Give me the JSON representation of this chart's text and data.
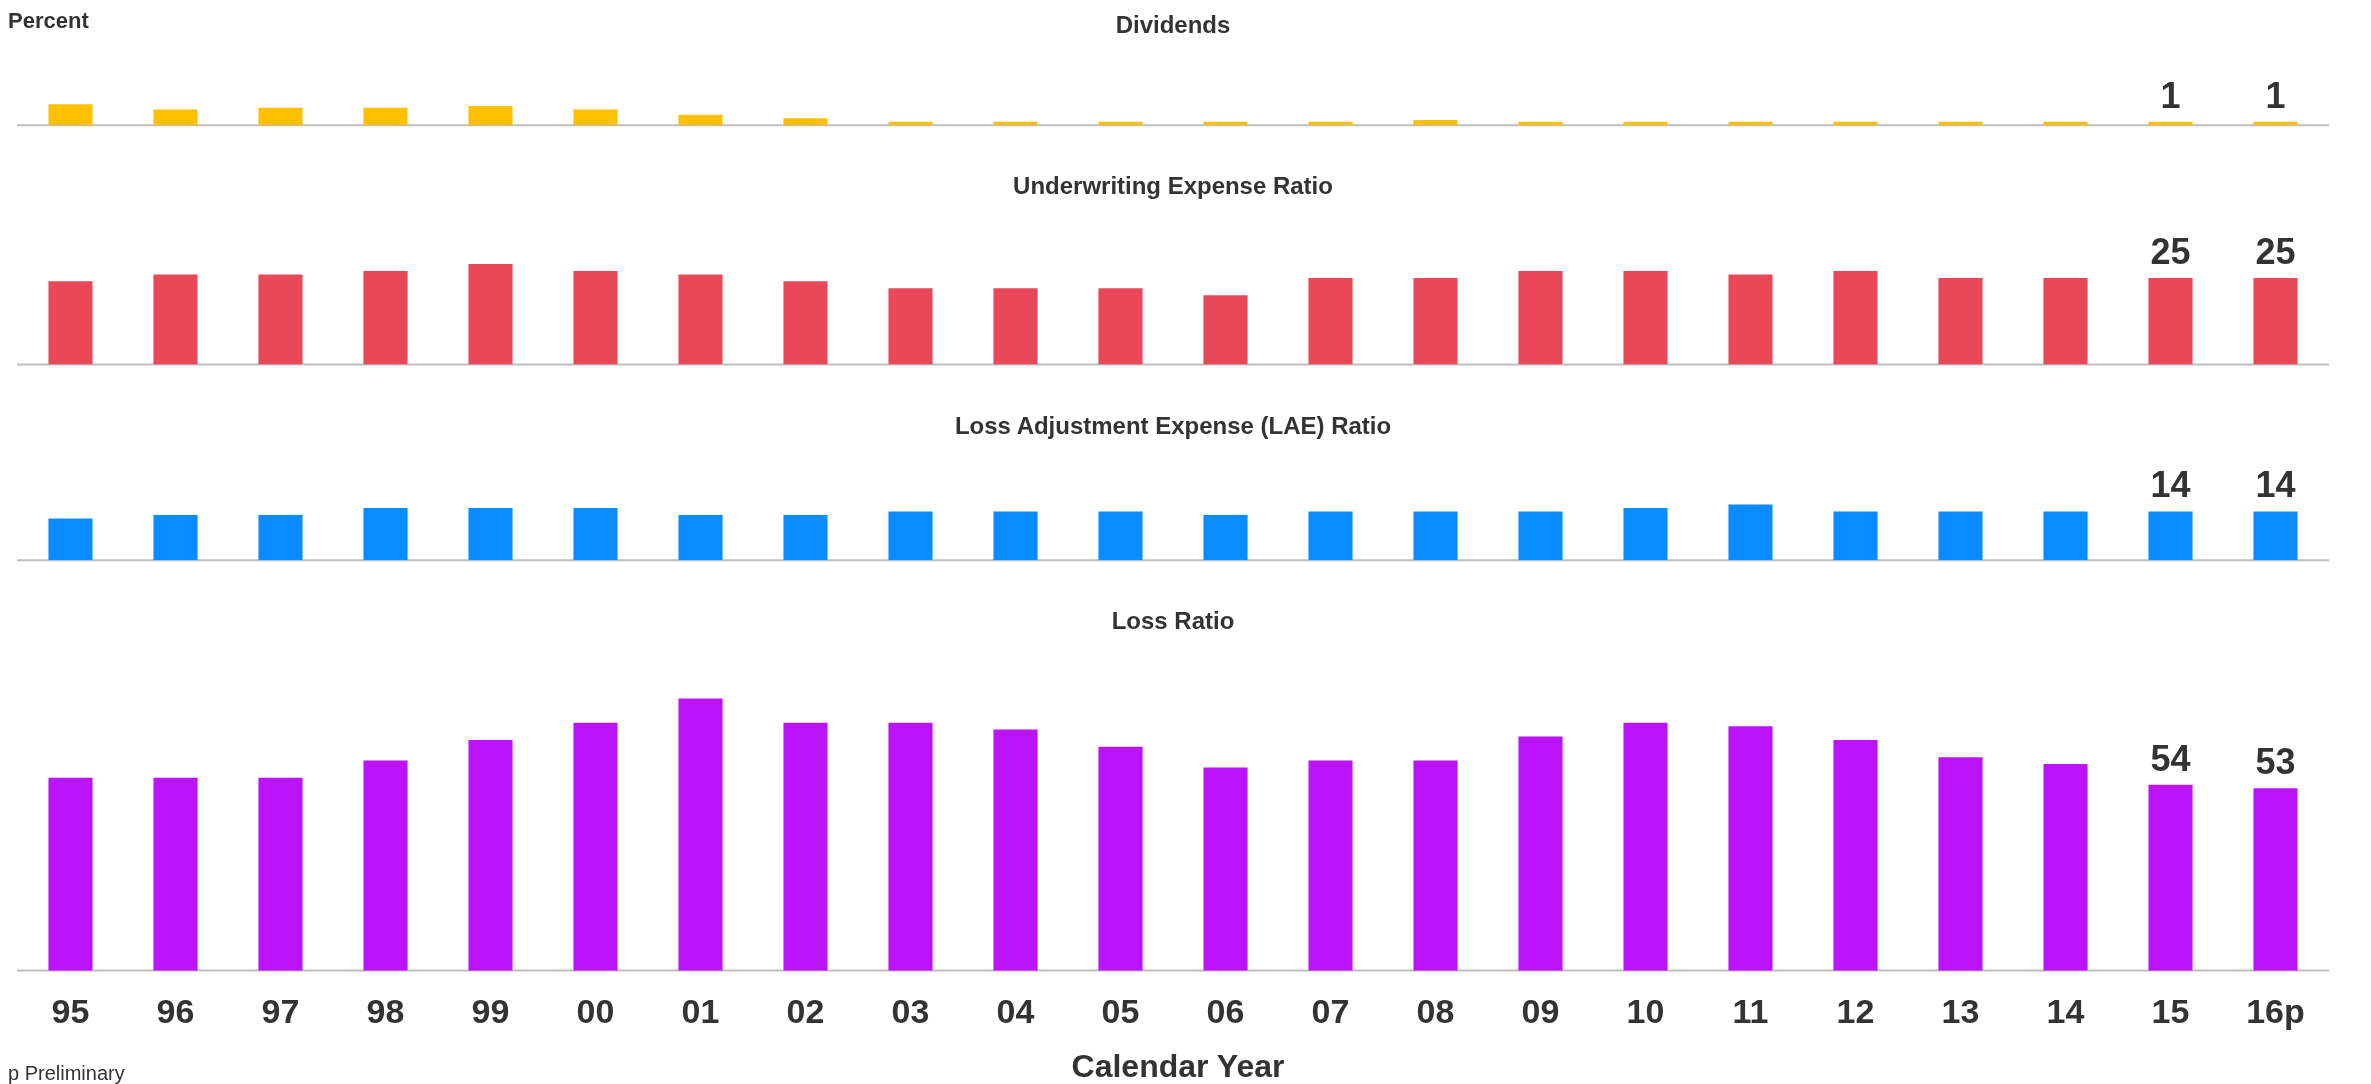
{
  "chart_data": [
    {
      "type": "bar",
      "title": "Dividends",
      "ylabel": "Percent",
      "categories": [
        null,
        null,
        null,
        null,
        null,
        null,
        null,
        null,
        null,
        null,
        null,
        null,
        null,
        null,
        null,
        null,
        null,
        null,
        null,
        null,
        null,
        null
      ],
      "values": [
        6,
        4.5,
        5,
        5,
        5.5,
        4.5,
        3,
        2,
        1,
        1,
        1,
        1,
        1,
        1.5,
        1,
        1,
        1,
        1,
        1,
        1,
        1,
        1
      ],
      "value_labels": [
        null,
        null,
        null,
        null,
        null,
        null,
        null,
        null,
        null,
        null,
        null,
        null,
        null,
        null,
        null,
        null,
        null,
        null,
        null,
        null,
        "1",
        "1"
      ],
      "color": "#ffc000",
      "tick_labels": false
    },
    {
      "type": "bar",
      "title": "Underwriting Expense Ratio",
      "categories": [
        null,
        null,
        null,
        null,
        null,
        null,
        null,
        null,
        null,
        null,
        null,
        null,
        null,
        null,
        null,
        null,
        null,
        null,
        null,
        null,
        null,
        null
      ],
      "values": [
        24,
        26,
        26,
        27,
        29,
        27,
        26,
        24,
        22,
        22,
        22,
        20,
        25,
        25,
        27,
        27,
        26,
        27,
        25,
        25,
        25,
        25
      ],
      "value_labels": [
        null,
        null,
        null,
        null,
        null,
        null,
        null,
        null,
        null,
        null,
        null,
        null,
        null,
        null,
        null,
        null,
        null,
        null,
        null,
        null,
        "25",
        "25"
      ],
      "color": "#e84858",
      "tick_labels": false
    },
    {
      "type": "bar",
      "title": "Loss Adjustment Expense (LAE) Ratio",
      "categories": [
        null,
        null,
        null,
        null,
        null,
        null,
        null,
        null,
        null,
        null,
        null,
        null,
        null,
        null,
        null,
        null,
        null,
        null,
        null,
        null,
        null,
        null
      ],
      "values": [
        12,
        13,
        13,
        15,
        15,
        15,
        13,
        13,
        14,
        14,
        14,
        13,
        14,
        14,
        14,
        15,
        16,
        14,
        14,
        14,
        14,
        14
      ],
      "value_labels": [
        null,
        null,
        null,
        null,
        null,
        null,
        null,
        null,
        null,
        null,
        null,
        null,
        null,
        null,
        null,
        null,
        null,
        null,
        null,
        null,
        "14",
        "14"
      ],
      "color": "#0a8cff",
      "tick_labels": false
    },
    {
      "type": "bar",
      "title": "Loss Ratio",
      "xlabel": "Calendar Year",
      "annotations": [
        "p Preliminary"
      ],
      "categories": [
        "95",
        "96",
        "97",
        "98",
        "99",
        "00",
        "01",
        "02",
        "03",
        "04",
        "05",
        "06",
        "07",
        "08",
        "09",
        "10",
        "11",
        "12",
        "13",
        "14",
        "15",
        "16p"
      ],
      "values": [
        56,
        56,
        56,
        61,
        67,
        72,
        79,
        72,
        72,
        70,
        65,
        59,
        61,
        61,
        68,
        72,
        71,
        67,
        62,
        60,
        54,
        53
      ],
      "value_labels": [
        null,
        null,
        null,
        null,
        null,
        null,
        null,
        null,
        null,
        null,
        null,
        null,
        null,
        null,
        null,
        null,
        null,
        null,
        null,
        null,
        "54",
        "53"
      ],
      "color": "#bb14fa",
      "tick_labels": "x"
    }
  ]
}
